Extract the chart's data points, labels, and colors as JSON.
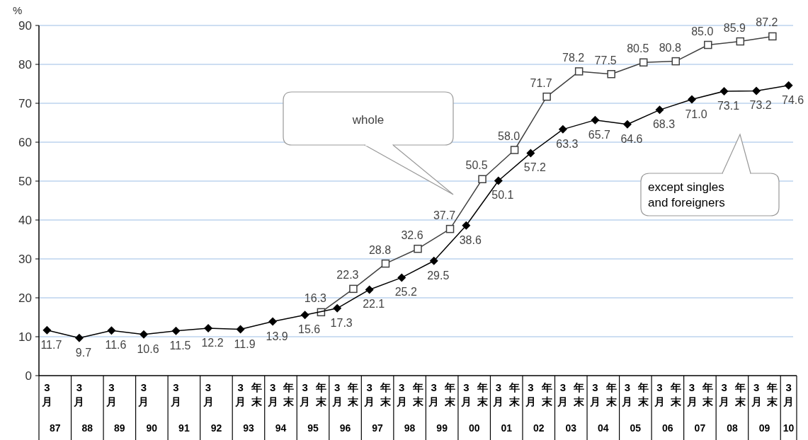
{
  "chart_data": {
    "type": "line",
    "ylabel": "%",
    "categories": [
      "3月",
      null,
      "3月",
      null,
      "3月",
      null,
      "3月",
      null,
      "3月",
      null,
      "3月",
      null,
      "3月",
      "年末",
      "3月",
      "年末",
      "3月",
      "年末",
      "3月",
      "年末",
      "3月",
      "年末",
      "3月",
      "年末",
      "3月",
      "年末",
      "3月",
      "年末",
      "3月",
      "年末",
      "3月",
      "年末",
      "3月",
      "年末",
      "3月",
      "年末",
      "3月",
      "年末",
      "3月",
      "年末",
      "3月",
      "年末",
      "3月",
      "年末",
      "3月",
      "年末",
      "3月"
    ],
    "annotations": [
      "87",
      "88",
      "89",
      "90",
      "91",
      "92",
      "93",
      "94",
      "95",
      "96",
      "97",
      "98",
      "99",
      "00",
      "01",
      "02",
      "03",
      "04",
      "05",
      "06",
      "07",
      "08",
      "09",
      "10"
    ],
    "series": [
      {
        "name": "whole",
        "color": "#404040",
        "marker": "square",
        "values": [
          null,
          null,
          null,
          null,
          null,
          null,
          null,
          null,
          null,
          null,
          null,
          null,
          null,
          null,
          null,
          null,
          null,
          16.3,
          null,
          22.3,
          null,
          28.8,
          null,
          32.6,
          null,
          37.7,
          null,
          50.5,
          null,
          58.0,
          null,
          71.7,
          null,
          78.2,
          null,
          77.5,
          null,
          80.5,
          null,
          80.8,
          null,
          85.0,
          null,
          85.9,
          null,
          87.2,
          null
        ],
        "value_labels": [
          null,
          null,
          null,
          null,
          null,
          null,
          null,
          null,
          null,
          null,
          null,
          null,
          null,
          null,
          null,
          null,
          null,
          "16.3",
          null,
          "22.3",
          null,
          "28.8",
          null,
          "32.6",
          null,
          "37.7",
          null,
          "50.5",
          null,
          "58.0",
          null,
          "71.7",
          null,
          "78.2",
          null,
          "77.5",
          null,
          "80.5",
          null,
          "80.8",
          null,
          "85.0",
          null,
          "85.9",
          null,
          "87.2",
          null
        ]
      },
      {
        "name": "except singles and foreigners",
        "color": "#000000",
        "marker": "diamond",
        "values": [
          11.7,
          null,
          9.7,
          null,
          11.6,
          null,
          10.6,
          null,
          11.5,
          null,
          12.2,
          null,
          11.9,
          null,
          13.9,
          null,
          15.6,
          null,
          17.3,
          null,
          22.1,
          null,
          25.2,
          null,
          29.5,
          null,
          38.6,
          null,
          50.1,
          null,
          57.2,
          null,
          63.3,
          null,
          65.7,
          null,
          64.6,
          null,
          68.3,
          null,
          71.0,
          null,
          73.1,
          null,
          73.2,
          null,
          74.6
        ],
        "value_labels": [
          "11.7",
          null,
          "9.7",
          null,
          "11.6",
          null,
          "10.6",
          null,
          "11.5",
          null,
          "12.2",
          null,
          "11.9",
          null,
          "13.9",
          null,
          "15.6",
          null,
          "17.3",
          null,
          "22.1",
          null,
          "25.2",
          null,
          "29.5",
          null,
          "38.6",
          null,
          "50.1",
          null,
          "57.2",
          null,
          "63.3",
          null,
          "65.7",
          null,
          "64.6",
          null,
          "68.3",
          null,
          "71.0",
          null,
          "73.1",
          null,
          "73.2",
          null,
          "74.6"
        ]
      }
    ],
    "ylim": [
      0,
      90
    ],
    "yticks": [
      0,
      10,
      20,
      30,
      40,
      50,
      60,
      70,
      80,
      90
    ],
    "grid": "y"
  }
}
